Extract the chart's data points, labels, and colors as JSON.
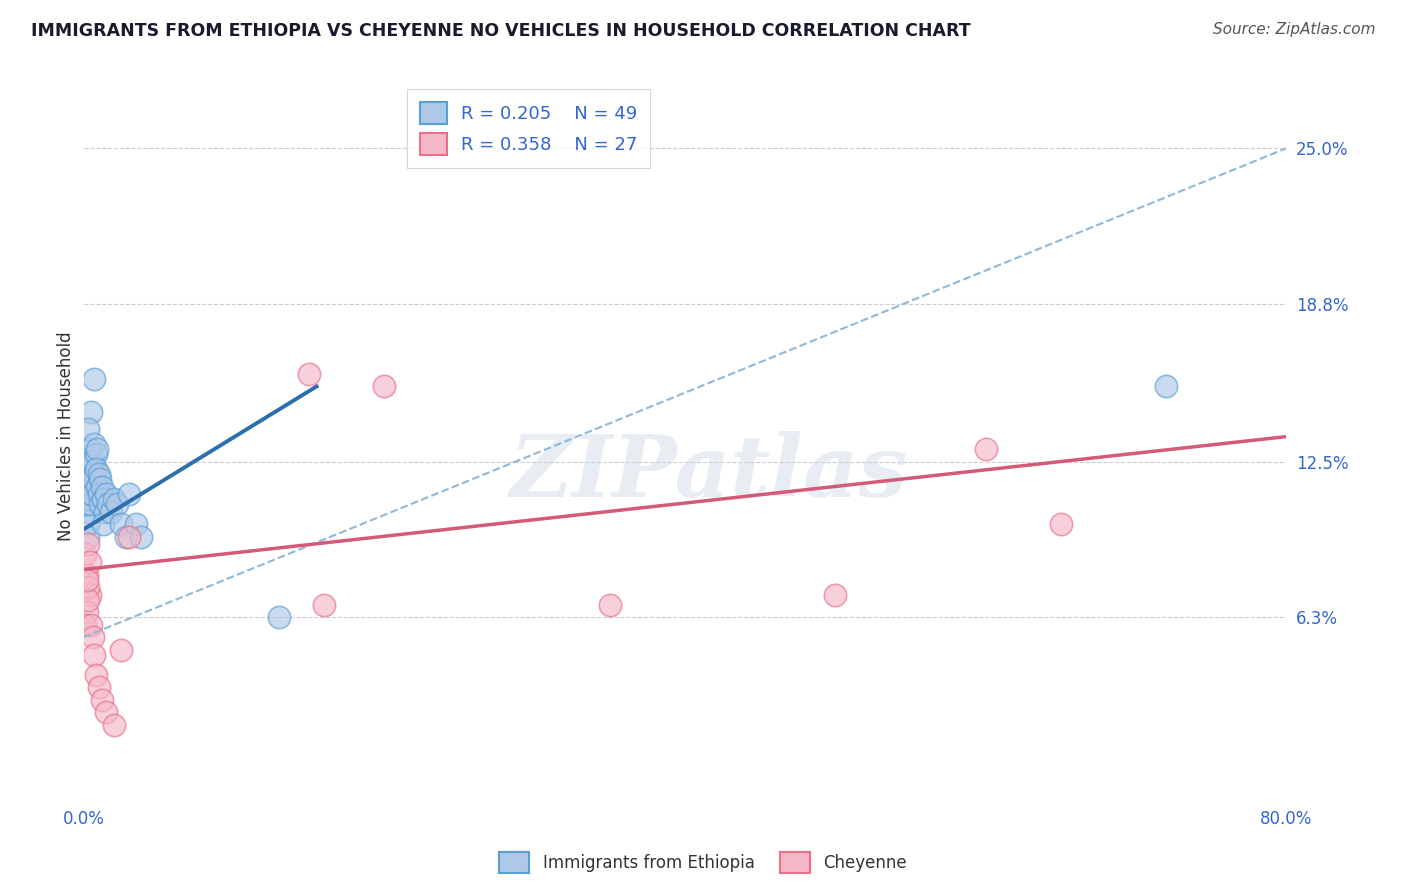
{
  "title": "IMMIGRANTS FROM ETHIOPIA VS CHEYENNE NO VEHICLES IN HOUSEHOLD CORRELATION CHART",
  "source": "Source: ZipAtlas.com",
  "ylabel": "No Vehicles in Household",
  "xlim": [
    0.0,
    0.8
  ],
  "ylim": [
    -0.01,
    0.28
  ],
  "ytick_labels_right": [
    "25.0%",
    "18.8%",
    "12.5%",
    "6.3%"
  ],
  "ytick_vals_right": [
    0.25,
    0.188,
    0.125,
    0.063
  ],
  "grid_yticks": [
    0.25,
    0.188,
    0.125,
    0.063
  ],
  "blue_R": "R = 0.205",
  "blue_N": "N = 49",
  "pink_R": "R = 0.358",
  "pink_N": "N = 27",
  "blue_face_color": "#aec8e8",
  "blue_edge_color": "#5a9fd4",
  "pink_face_color": "#f5b8c8",
  "pink_edge_color": "#e8708a",
  "blue_line_color": "#2c6fad",
  "pink_line_color": "#d45a7a",
  "dashed_line_color": "#90b8d8",
  "watermark": "ZIPatlas",
  "blue_scatter_x": [
    0.001,
    0.002,
    0.003,
    0.004,
    0.003,
    0.002,
    0.001,
    0.003,
    0.004,
    0.002,
    0.005,
    0.004,
    0.003,
    0.006,
    0.005,
    0.004,
    0.007,
    0.006,
    0.005,
    0.004,
    0.006,
    0.007,
    0.005,
    0.008,
    0.007,
    0.006,
    0.009,
    0.008,
    0.01,
    0.009,
    0.011,
    0.01,
    0.012,
    0.011,
    0.013,
    0.014,
    0.015,
    0.013,
    0.016,
    0.018,
    0.02,
    0.022,
    0.025,
    0.028,
    0.03,
    0.035,
    0.038,
    0.13,
    0.72
  ],
  "blue_scatter_y": [
    0.118,
    0.112,
    0.105,
    0.12,
    0.1,
    0.115,
    0.108,
    0.095,
    0.125,
    0.11,
    0.145,
    0.13,
    0.138,
    0.12,
    0.115,
    0.125,
    0.158,
    0.118,
    0.112,
    0.108,
    0.125,
    0.132,
    0.112,
    0.128,
    0.12,
    0.118,
    0.13,
    0.122,
    0.12,
    0.115,
    0.118,
    0.112,
    0.115,
    0.108,
    0.11,
    0.105,
    0.112,
    0.1,
    0.108,
    0.105,
    0.11,
    0.108,
    0.1,
    0.095,
    0.112,
    0.1,
    0.095,
    0.063,
    0.155
  ],
  "pink_scatter_x": [
    0.001,
    0.002,
    0.003,
    0.004,
    0.002,
    0.003,
    0.001,
    0.004,
    0.003,
    0.002,
    0.005,
    0.006,
    0.007,
    0.008,
    0.01,
    0.012,
    0.015,
    0.02,
    0.025,
    0.03,
    0.15,
    0.2,
    0.35,
    0.5,
    0.6,
    0.65,
    0.16
  ],
  "pink_scatter_y": [
    0.088,
    0.08,
    0.092,
    0.072,
    0.065,
    0.075,
    0.06,
    0.085,
    0.07,
    0.078,
    0.06,
    0.055,
    0.048,
    0.04,
    0.035,
    0.03,
    0.025,
    0.02,
    0.05,
    0.095,
    0.16,
    0.155,
    0.068,
    0.072,
    0.13,
    0.1,
    0.068
  ],
  "blue_trendline_x": [
    0.0,
    0.155
  ],
  "blue_trendline_y": [
    0.098,
    0.155
  ],
  "dashed_trendline_x": [
    0.0,
    0.8
  ],
  "dashed_trendline_y": [
    0.055,
    0.25
  ],
  "pink_trendline_x": [
    0.0,
    0.8
  ],
  "pink_trendline_y": [
    0.082,
    0.135
  ]
}
